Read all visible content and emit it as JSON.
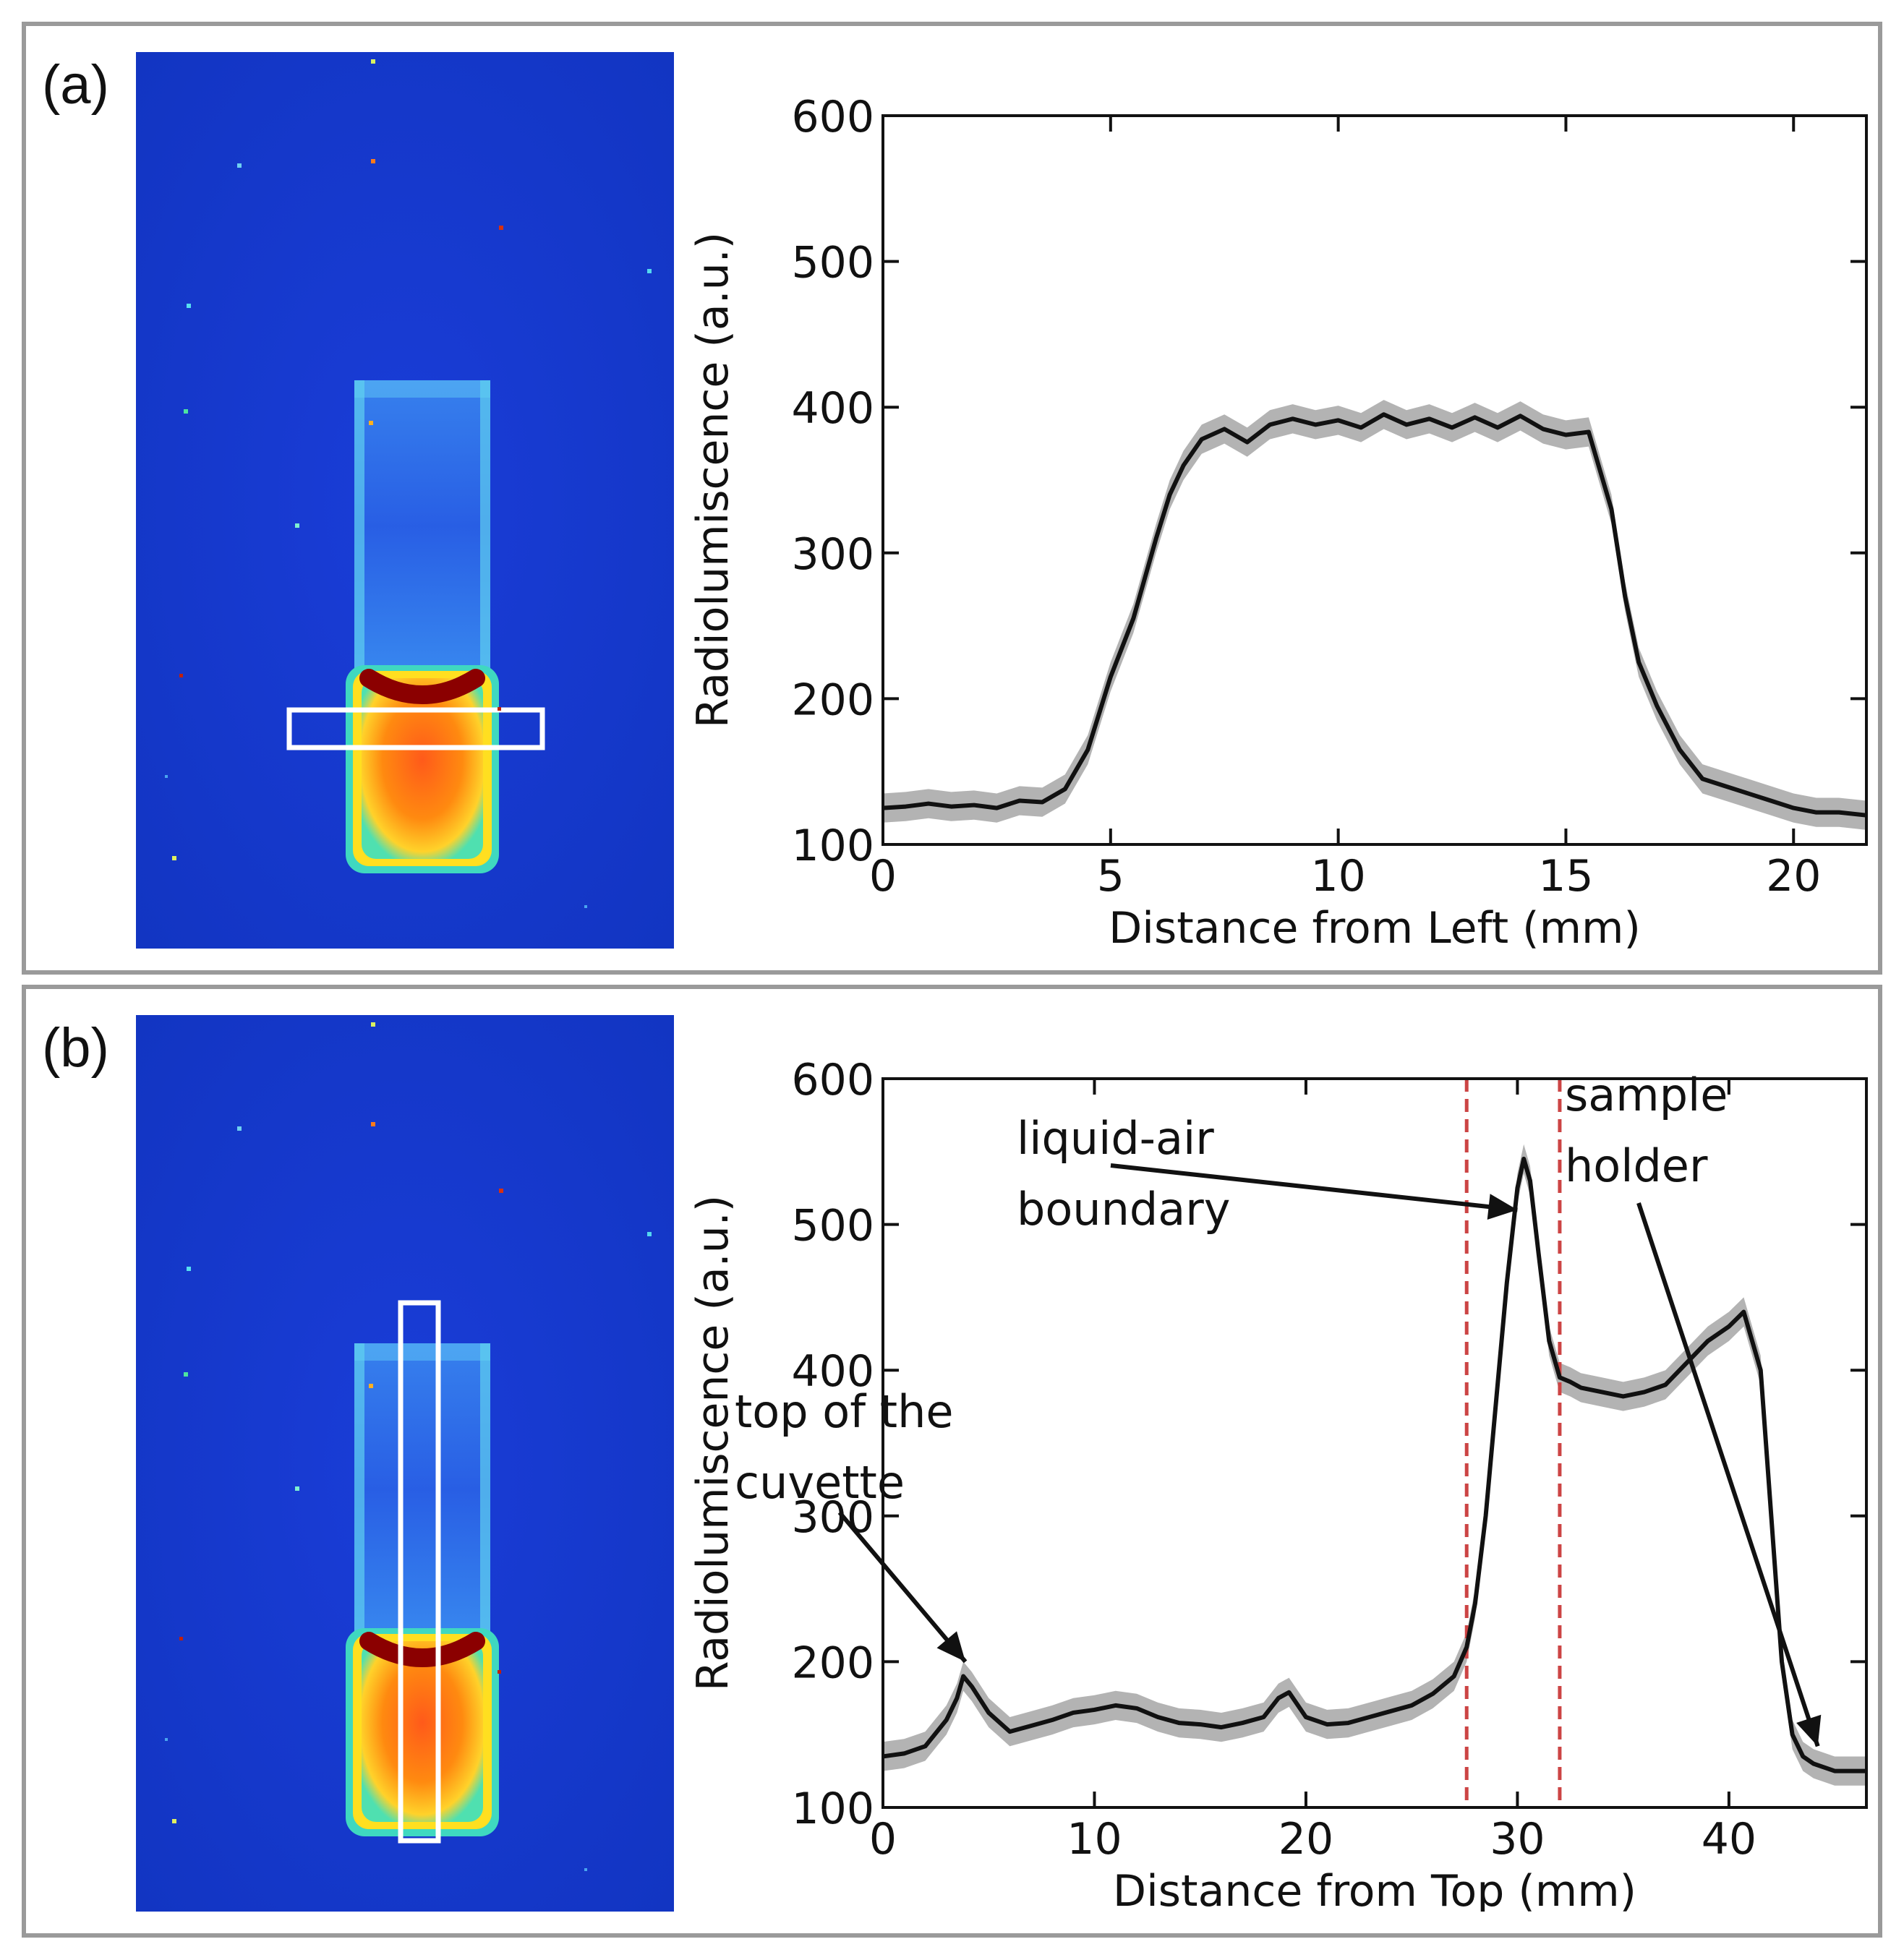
{
  "colors": {
    "frame": "#9a9a9a",
    "line": "#111111",
    "band": "#b3b3b3",
    "marker": "#cc4444",
    "roi": "#ffffff"
  },
  "panels": [
    {
      "label": "(a)",
      "image": {
        "description_icon": "radioluminescence-image",
        "roi": "horizontal"
      }
    },
    {
      "label": "(b)",
      "image": {
        "description_icon": "radioluminescence-image",
        "roi": "vertical"
      }
    }
  ],
  "chart_data": [
    {
      "type": "line",
      "title": "",
      "xlabel": "Distance from Left (mm)",
      "ylabel": "Radiolumiscence (a.u.)",
      "xlim": [
        0,
        21.6
      ],
      "ylim": [
        100,
        600
      ],
      "xticks": [
        0,
        5,
        10,
        15,
        20
      ],
      "yticks": [
        100,
        200,
        300,
        400,
        500,
        600
      ],
      "series": [
        {
          "name": "mean",
          "x": [
            0,
            0.5,
            1.0,
            1.5,
            2.0,
            2.5,
            3.0,
            3.5,
            4.0,
            4.5,
            5.0,
            5.5,
            6.0,
            6.3,
            6.6,
            7.0,
            7.5,
            8.0,
            8.5,
            9.0,
            9.5,
            10.0,
            10.5,
            11.0,
            11.5,
            12.0,
            12.5,
            13.0,
            13.5,
            14.0,
            14.5,
            15.0,
            15.5,
            16.0,
            16.3,
            16.6,
            17.0,
            17.5,
            18.0,
            18.5,
            19.0,
            19.5,
            20.0,
            20.5,
            21.0,
            21.6
          ],
          "values": [
            125,
            126,
            128,
            126,
            127,
            125,
            130,
            129,
            138,
            165,
            215,
            255,
            310,
            340,
            360,
            378,
            385,
            376,
            388,
            392,
            388,
            391,
            386,
            395,
            388,
            392,
            386,
            393,
            386,
            394,
            385,
            381,
            383,
            330,
            270,
            225,
            195,
            165,
            145,
            140,
            135,
            130,
            125,
            122,
            122,
            120
          ]
        }
      ]
    },
    {
      "type": "line",
      "title": "",
      "xlabel": "Distance from Top (mm)",
      "ylabel": "Radiolumiscence (a.u.)",
      "xlim": [
        0,
        46.5
      ],
      "ylim": [
        100,
        600
      ],
      "xticks": [
        0,
        10,
        20,
        30,
        40
      ],
      "yticks": [
        100,
        200,
        300,
        400,
        500,
        600
      ],
      "vlines": [
        27.6,
        32.0
      ],
      "series": [
        {
          "name": "mean",
          "x": [
            0,
            1,
            2,
            3,
            3.5,
            3.8,
            4.2,
            5,
            6,
            7,
            8,
            9,
            10,
            11,
            12,
            13,
            14,
            15,
            16,
            17,
            18,
            18.7,
            19.2,
            20,
            21,
            22,
            23,
            24,
            25,
            26,
            27,
            27.6,
            28,
            28.5,
            29,
            29.5,
            30,
            30.3,
            30.6,
            31,
            31.5,
            32,
            32.5,
            33,
            34,
            35,
            36,
            37,
            38,
            39,
            40,
            40.7,
            41.5,
            42,
            42.5,
            43,
            43.5,
            44,
            45,
            46.5
          ],
          "values": [
            135,
            137,
            142,
            160,
            175,
            190,
            183,
            165,
            152,
            156,
            160,
            165,
            167,
            170,
            168,
            162,
            158,
            157,
            155,
            158,
            162,
            175,
            179,
            162,
            157,
            158,
            162,
            166,
            170,
            178,
            190,
            210,
            240,
            300,
            380,
            460,
            525,
            545,
            530,
            480,
            420,
            395,
            392,
            388,
            385,
            382,
            385,
            390,
            405,
            420,
            430,
            440,
            400,
            300,
            200,
            150,
            135,
            130,
            125,
            125
          ]
        }
      ],
      "annotations": [
        {
          "text_lines": [
            "liquid-air",
            "boundary"
          ],
          "target": [
            30.0,
            510
          ]
        },
        {
          "text_lines": [
            "top of the",
            "cuvette"
          ],
          "target": [
            3.9,
            200
          ]
        },
        {
          "text_lines": [
            "sample",
            "holder"
          ],
          "target": [
            44.2,
            142
          ]
        }
      ]
    }
  ]
}
